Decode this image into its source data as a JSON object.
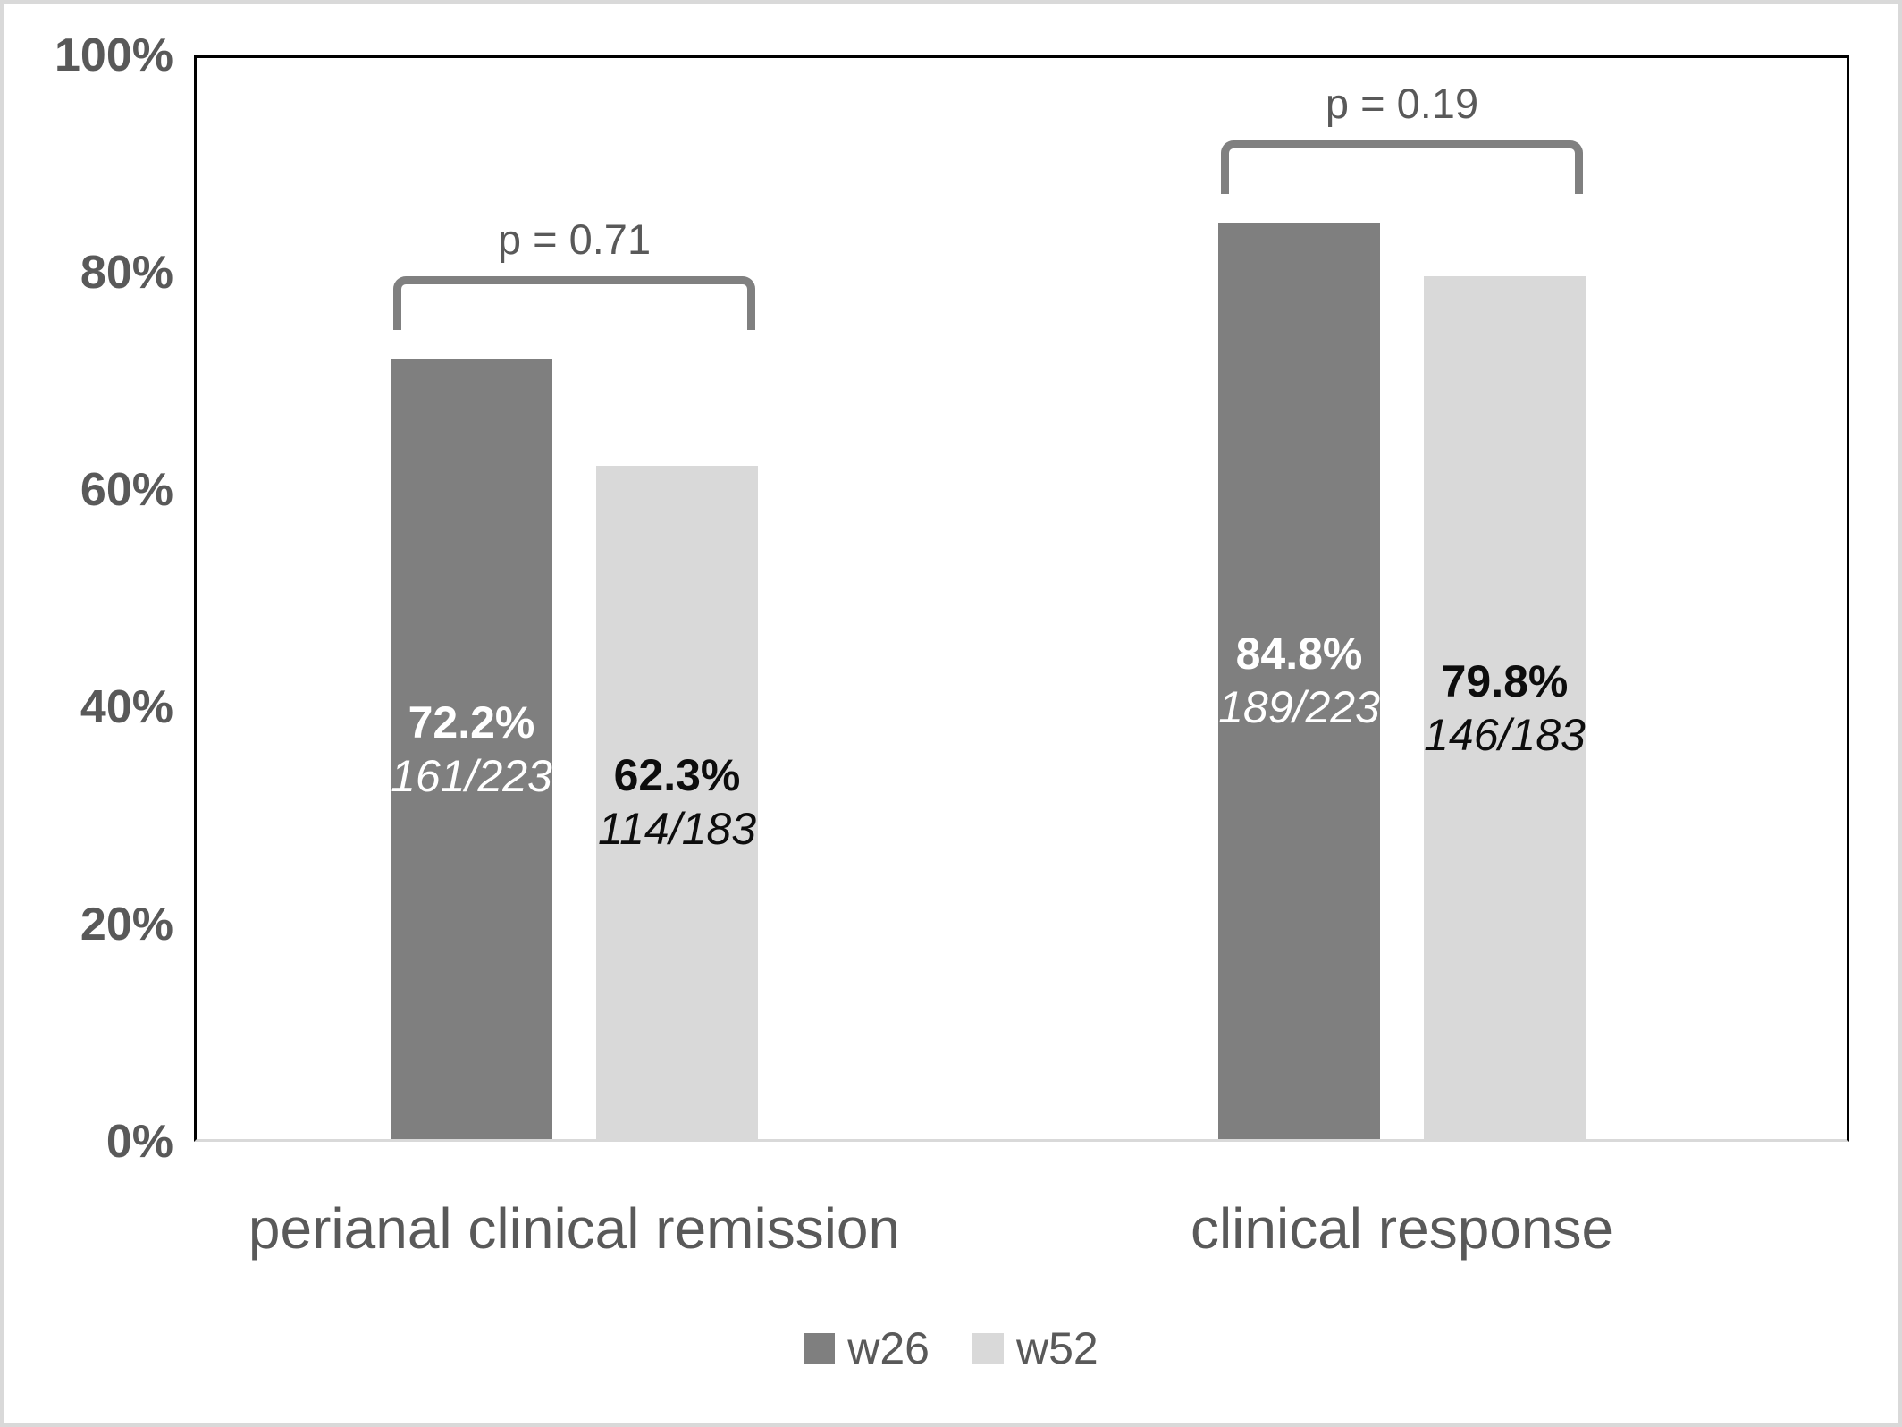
{
  "chart_data": {
    "type": "bar",
    "title": "",
    "xlabel": "",
    "ylabel": "",
    "categories": [
      "perianal clinical remission",
      "clinical response"
    ],
    "series": [
      {
        "name": "w26",
        "color": "#7f7f7f",
        "label_color": "#ffffff",
        "values": [
          72.2,
          84.8
        ]
      },
      {
        "name": "w52",
        "color": "#d9d9d9",
        "label_color": "#0d0d0d",
        "values": [
          62.3,
          79.8
        ]
      }
    ],
    "groups": [
      {
        "category": "perianal clinical remission",
        "p_label": "p = 0.71",
        "bars": [
          {
            "series": "w26",
            "value": 72.2,
            "value_label": "72.2%",
            "fraction": "161/223"
          },
          {
            "series": "w52",
            "value": 62.3,
            "value_label": "62.3%",
            "fraction": "114/183"
          }
        ]
      },
      {
        "category": "clinical response",
        "p_label": "p = 0.19",
        "bars": [
          {
            "series": "w26",
            "value": 84.8,
            "value_label": "84.8%",
            "fraction": "189/223"
          },
          {
            "series": "w52",
            "value": 79.8,
            "value_label": "79.8%",
            "fraction": "146/183"
          }
        ]
      }
    ],
    "y_axis": {
      "min": 0,
      "max": 100,
      "tick_labels": [
        "100%",
        "80%",
        "60%",
        "40%",
        "20%",
        "0%"
      ],
      "grid": false
    },
    "legend": {
      "position": "bottom",
      "entries": [
        {
          "label": "w26",
          "color": "#7f7f7f"
        },
        {
          "label": "w52",
          "color": "#d9d9d9"
        }
      ]
    },
    "colors": {
      "bracket": "#808080",
      "text": "#595959",
      "axis_line": "#000000",
      "baseline": "#d9d9d9"
    }
  }
}
